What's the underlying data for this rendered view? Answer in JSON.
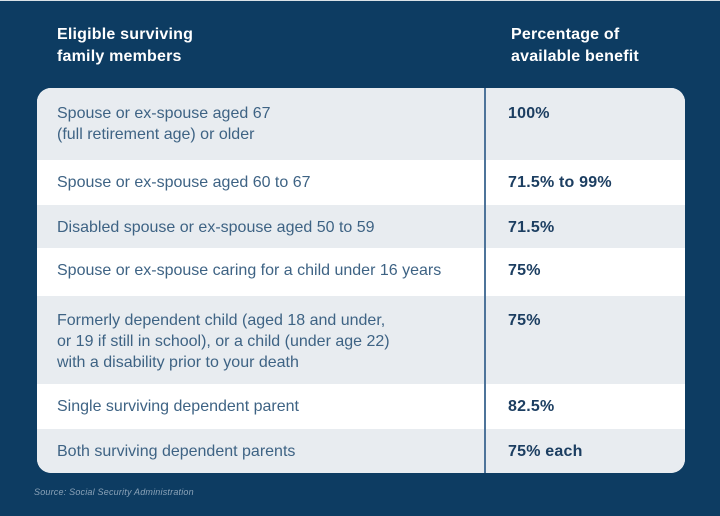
{
  "table": {
    "header": {
      "members": "Eligible surviving\nfamily members",
      "percentage": "Percentage of\navailable benefit"
    },
    "rows": [
      {
        "member": "Spouse or ex-spouse aged 67\n(full retirement age) or older",
        "benefit": "100%"
      },
      {
        "member": "Spouse or ex-spouse aged 60 to 67",
        "benefit": "71.5% to 99%"
      },
      {
        "member": "Disabled spouse or ex-spouse aged 50 to 59",
        "benefit": "71.5%"
      },
      {
        "member": "Spouse or ex-spouse caring for a child under 16 years",
        "benefit": "75%"
      },
      {
        "member": "Formerly dependent child (aged 18 and under,\nor 19 if still in school), or a child (under age 22)\nwith a disability prior to your death",
        "benefit": "75%"
      },
      {
        "member": "Single surviving dependent parent",
        "benefit": "82.5%"
      },
      {
        "member": "Both surviving dependent parents",
        "benefit": "75% each"
      }
    ]
  },
  "source": "Source: Social Security Administration",
  "colors": {
    "navy": "#0d3c62",
    "row-gray": "#e8ecf0",
    "row-white": "#ffffff",
    "divider": "#4e749a",
    "body-text": "#3e6384",
    "value-text": "#1c3e61",
    "header-text": "#ffffff",
    "source-text": "#8ba3b8"
  }
}
